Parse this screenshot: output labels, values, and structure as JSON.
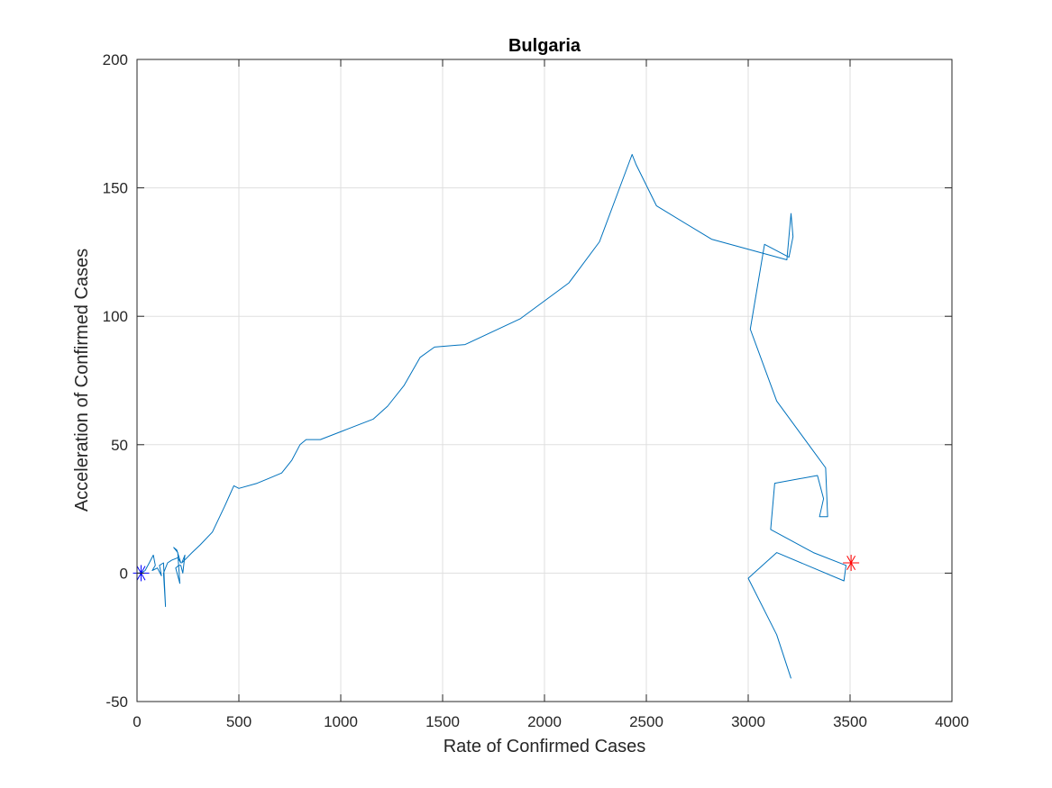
{
  "chart_data": {
    "type": "line",
    "title": "Bulgaria",
    "xlabel": "Rate of Confirmed Cases",
    "ylabel": "Acceleration of Confirmed Cases",
    "xlim": [
      0,
      4000
    ],
    "ylim": [
      -50,
      200
    ],
    "xticks": [
      0,
      500,
      1000,
      1500,
      2000,
      2500,
      3000,
      3500,
      4000
    ],
    "yticks": [
      -50,
      0,
      50,
      100,
      150,
      200
    ],
    "grid": true,
    "series": [
      {
        "color": "#0072bd",
        "x": [
          10,
          20,
          40,
          60,
          80,
          90,
          75,
          100,
          120,
          110,
          130,
          140,
          130,
          150,
          170,
          200,
          215,
          195,
          180,
          200,
          210,
          190,
          205,
          215,
          225,
          235,
          220,
          245,
          270,
          310,
          370,
          430,
          475,
          500,
          590,
          650,
          710,
          760,
          800,
          830,
          900,
          1030,
          1160,
          1230,
          1310,
          1390,
          1460,
          1610,
          1880,
          2120,
          2270,
          2350,
          2430,
          2450,
          2550,
          2820,
          3190,
          3210,
          3220,
          3200,
          3080,
          3010,
          3140,
          3380,
          3390,
          3350,
          3370,
          3340,
          3130,
          3110,
          3320,
          3480,
          3470,
          3140,
          3000,
          3140,
          3210
        ],
        "y": [
          0,
          0,
          1,
          4,
          7,
          3,
          1,
          2,
          -1,
          3,
          4,
          -13,
          0,
          4,
          5,
          6,
          4,
          9,
          10,
          8,
          -4,
          2,
          3,
          3,
          0,
          7,
          4,
          6,
          8,
          11,
          16,
          26,
          34,
          33,
          35,
          37,
          39,
          44,
          50,
          52,
          52,
          56,
          60,
          65,
          73,
          84,
          88,
          89,
          99,
          113,
          129,
          146,
          163,
          159,
          143,
          130,
          122,
          140,
          131,
          123,
          128,
          95,
          67,
          41,
          22,
          22,
          29,
          38,
          35,
          17,
          8,
          3,
          -3,
          8,
          -2,
          -24,
          -41
        ]
      }
    ],
    "markers": [
      {
        "name": "start",
        "symbol": "asterisk",
        "color": "#0000ff",
        "x": 20,
        "y": 0
      },
      {
        "name": "end",
        "symbol": "asterisk",
        "color": "#ff0000",
        "x": 3505,
        "y": 4
      }
    ]
  }
}
